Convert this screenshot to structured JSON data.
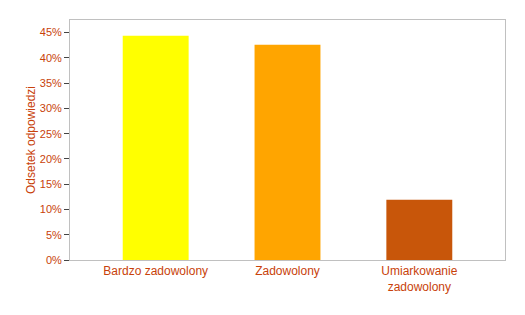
{
  "chart_data": {
    "type": "bar",
    "categories": [
      "Bardzo zadowolony",
      "Zadowolony",
      "Umiarkowanie\nzadowolony"
    ],
    "values": [
      0.444,
      0.426,
      0.119
    ],
    "colors": [
      "#ffff00",
      "#ffa500",
      "#c8560a"
    ],
    "ylabel": "Odsetek odpowiedzi",
    "ylim": [
      0,
      0.475
    ],
    "yticks": [
      {
        "value": 0,
        "label": "0%"
      },
      {
        "value": 0.05,
        "label": "5%"
      },
      {
        "value": 0.1,
        "label": "10%"
      },
      {
        "value": 0.15,
        "label": "15%"
      },
      {
        "value": 0.2,
        "label": "20%"
      },
      {
        "value": 0.25,
        "label": "25%"
      },
      {
        "value": 0.3,
        "label": "30%"
      },
      {
        "value": 0.35,
        "label": "35%"
      },
      {
        "value": 0.4,
        "label": "40%"
      },
      {
        "value": 0.45,
        "label": "45%"
      }
    ],
    "grid": false
  }
}
